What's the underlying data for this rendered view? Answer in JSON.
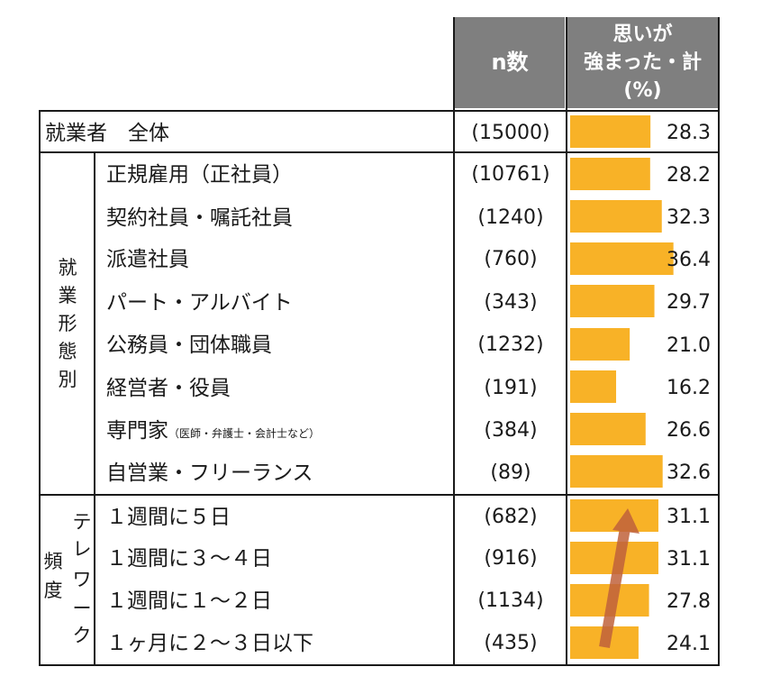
{
  "header": {
    "n_label": "n数",
    "value_label_lines": [
      "思いが",
      "強まった・計",
      "(%)"
    ]
  },
  "total_row": {
    "label": "就業者　全体",
    "n": "(15000)",
    "value": "28.3"
  },
  "groups": {
    "employment": {
      "label_chars": [
        "就",
        "業",
        "形",
        "態",
        "別"
      ]
    },
    "frequency": {
      "label_chars_outer": [
        "頻",
        "度"
      ],
      "label_chars_inner": [
        "テ",
        "レ",
        "ワ",
        "ー",
        "ク"
      ]
    }
  },
  "rows": [
    {
      "label": "正規雇用（正社員）",
      "note": "",
      "n": "(10761)",
      "value": "28.2"
    },
    {
      "label": "契約社員・嘱託社員",
      "note": "",
      "n": "(1240)",
      "value": "32.3"
    },
    {
      "label": "派遣社員",
      "note": "",
      "n": "(760)",
      "value": "36.4"
    },
    {
      "label": "パート・アルバイト",
      "note": "",
      "n": "(343)",
      "value": "29.7"
    },
    {
      "label": "公務員・団体職員",
      "note": "",
      "n": "(1232)",
      "value": "21.0"
    },
    {
      "label": "経営者・役員",
      "note": "",
      "n": "(191)",
      "value": "16.2"
    },
    {
      "label": "専門家",
      "note": "（医師・弁護士・会計士など）",
      "n": "(384)",
      "value": "26.6"
    },
    {
      "label": "自営業・フリーランス",
      "note": "",
      "n": "(89)",
      "value": "32.6"
    },
    {
      "label": "１週間に５日",
      "note": "",
      "n": "(682)",
      "value": "31.1"
    },
    {
      "label": "１週間に３～４日",
      "note": "",
      "n": "(916)",
      "value": "31.1"
    },
    {
      "label": "１週間に１～２日",
      "note": "",
      "n": "(1134)",
      "value": "27.8"
    },
    {
      "label": "１ヶ月に２～３日以下",
      "note": "",
      "n": "(435)",
      "value": "24.1"
    }
  ],
  "chart_data": {
    "type": "bar",
    "orientation": "horizontal",
    "ylabel": "思いが強まった・計(%)",
    "categories": [
      "就業者　全体",
      "正規雇用（正社員）",
      "契約社員・嘱託社員",
      "派遣社員",
      "パート・アルバイト",
      "公務員・団体職員",
      "経営者・役員",
      "専門家",
      "自営業・フリーランス",
      "１週間に５日",
      "１週間に３～４日",
      "１週間に１～２日",
      "１ヶ月に２～３日以下"
    ],
    "values": [
      28.3,
      28.2,
      32.3,
      36.4,
      29.7,
      21.0,
      16.2,
      26.6,
      32.6,
      31.1,
      31.1,
      27.8,
      24.1
    ],
    "xlim": [
      0,
      40
    ],
    "bar_color": "#f8b227",
    "arrow_color": "#c0623c"
  }
}
